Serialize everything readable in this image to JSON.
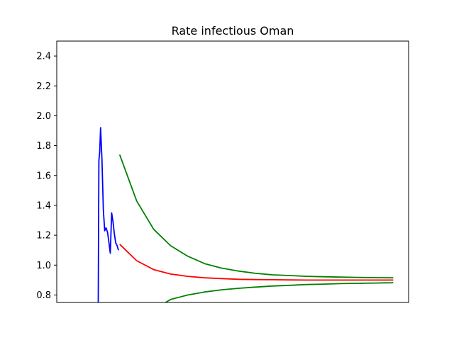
{
  "chart_data": {
    "type": "line",
    "title": "Rate infectious Oman",
    "xlabel": "",
    "ylabel": "",
    "x_axis_visible": false,
    "xlim": [
      -27,
      180
    ],
    "ylim": [
      0.75,
      2.5
    ],
    "y_ticks": [
      0.8,
      1.0,
      1.2,
      1.4,
      1.6,
      1.8,
      2.0,
      2.2,
      2.4
    ],
    "y_tick_labels": [
      "0.8",
      "1.0",
      "1.2",
      "1.4",
      "1.6",
      "1.8",
      "2.0",
      "2.2",
      "2.4"
    ],
    "grid": false,
    "legend": "none",
    "series": [
      {
        "color": "#0000ff",
        "x": [
          -2.6,
          -2.2,
          -1.7,
          -1.2,
          -0.4,
          0.4,
          1.2,
          2.0,
          2.9,
          3.7,
          4.5,
          5.3,
          6.1,
          6.9,
          7.7,
          8.5,
          9.3
        ],
        "values": [
          0.75,
          1.7,
          1.76,
          1.92,
          1.71,
          1.37,
          1.23,
          1.25,
          1.22,
          1.15,
          1.08,
          1.35,
          1.29,
          1.21,
          1.15,
          1.13,
          1.1
        ]
      },
      {
        "color": "#ff0000",
        "x": [
          10,
          20,
          30,
          40,
          50,
          60,
          70,
          80,
          90,
          100,
          110,
          120,
          130,
          140,
          150,
          160,
          170,
          171
        ],
        "values": [
          1.14,
          1.03,
          0.97,
          0.94,
          0.925,
          0.915,
          0.91,
          0.905,
          0.903,
          0.902,
          0.901,
          0.9,
          0.9,
          0.9,
          0.9,
          0.9,
          0.9,
          0.9
        ]
      },
      {
        "color": "#008000",
        "x": [
          10,
          20,
          30,
          40,
          50,
          60,
          70,
          80,
          90,
          100,
          110,
          120,
          130,
          140,
          150,
          160,
          170,
          171
        ],
        "values": [
          1.74,
          1.43,
          1.24,
          1.13,
          1.06,
          1.01,
          0.98,
          0.96,
          0.945,
          0.935,
          0.93,
          0.925,
          0.922,
          0.92,
          0.918,
          0.916,
          0.915,
          0.915
        ]
      },
      {
        "color": "#008000",
        "x": [
          37,
          40,
          50,
          60,
          70,
          80,
          90,
          100,
          110,
          120,
          130,
          140,
          150,
          160,
          170,
          171
        ],
        "values": [
          0.75,
          0.77,
          0.8,
          0.82,
          0.835,
          0.845,
          0.853,
          0.86,
          0.865,
          0.87,
          0.873,
          0.876,
          0.878,
          0.88,
          0.882,
          0.883
        ]
      }
    ]
  }
}
